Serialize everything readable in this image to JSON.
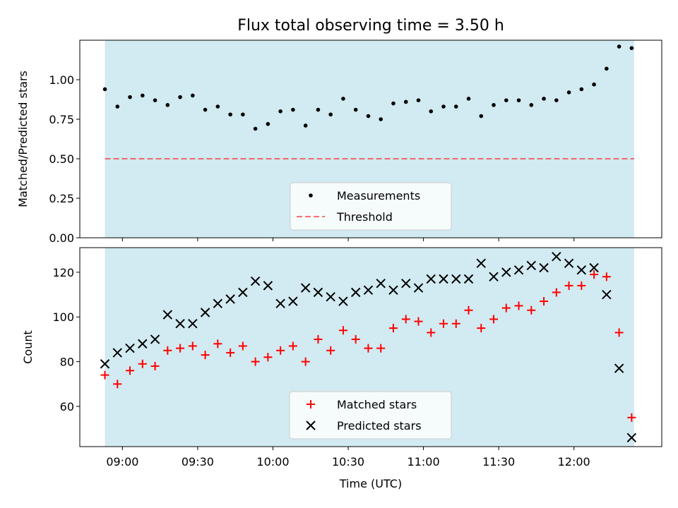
{
  "chart_data": [
    {
      "type": "scatter",
      "title": "Flux total observing time = 3.50 h",
      "ylabel": "Matched/Predicted stars",
      "xlabel": "",
      "xlim_minutes": [
        523,
        755
      ],
      "ylim": [
        0,
        1.25
      ],
      "yticks": [
        0.0,
        0.25,
        0.5,
        0.75,
        1.0
      ],
      "ytick_labels": [
        "0.00",
        "0.25",
        "0.50",
        "0.75",
        "1.00"
      ],
      "xticks_minutes": [
        540,
        570,
        600,
        630,
        660,
        690,
        720
      ],
      "shaded_span_minutes": [
        533,
        744
      ],
      "threshold": 0.5,
      "colors": {
        "span": "#add8e6",
        "measurement": "#000000",
        "threshold": "#ff0000"
      },
      "legend": [
        "Measurements",
        "Threshold"
      ],
      "x_minutes": [
        533,
        538,
        543,
        548,
        553,
        558,
        563,
        568,
        573,
        578,
        583,
        588,
        593,
        598,
        603,
        608,
        613,
        618,
        623,
        628,
        633,
        638,
        643,
        648,
        653,
        658,
        663,
        668,
        673,
        678,
        683,
        688,
        693,
        698,
        703,
        708,
        713,
        718,
        723,
        728,
        733,
        738,
        743
      ],
      "values": [
        0.94,
        0.83,
        0.89,
        0.9,
        0.87,
        0.84,
        0.89,
        0.9,
        0.81,
        0.83,
        0.78,
        0.78,
        0.69,
        0.72,
        0.8,
        0.81,
        0.71,
        0.81,
        0.78,
        0.88,
        0.81,
        0.77,
        0.75,
        0.85,
        0.86,
        0.87,
        0.8,
        0.83,
        0.83,
        0.88,
        0.77,
        0.84,
        0.87,
        0.87,
        0.84,
        0.88,
        0.87,
        0.92,
        0.94,
        0.97,
        1.07,
        1.21,
        1.2
      ]
    },
    {
      "type": "scatter",
      "title": "",
      "ylabel": "Count",
      "xlabel": "Time (UTC)",
      "xlim_minutes": [
        523,
        755
      ],
      "ylim": [
        42,
        131
      ],
      "yticks": [
        60,
        80,
        100,
        120
      ],
      "ytick_labels": [
        "60",
        "80",
        "100",
        "120"
      ],
      "xticks_minutes": [
        540,
        570,
        600,
        630,
        660,
        690,
        720
      ],
      "xtick_labels": [
        "09:00",
        "09:30",
        "10:00",
        "10:30",
        "11:00",
        "11:30",
        "12:00"
      ],
      "shaded_span_minutes": [
        533,
        744
      ],
      "colors": {
        "span": "#add8e6",
        "matched": "#ff0000",
        "predicted": "#000000"
      },
      "legend": [
        "Matched stars",
        "Predicted stars"
      ],
      "x_minutes": [
        533,
        538,
        543,
        548,
        553,
        558,
        563,
        568,
        573,
        578,
        583,
        588,
        593,
        598,
        603,
        608,
        613,
        618,
        623,
        628,
        633,
        638,
        643,
        648,
        653,
        658,
        663,
        668,
        673,
        678,
        683,
        688,
        693,
        698,
        703,
        708,
        713,
        718,
        723,
        728,
        733,
        738,
        743
      ],
      "series": [
        {
          "name": "Matched stars",
          "marker": "plus",
          "values": [
            74,
            70,
            76,
            79,
            78,
            85,
            86,
            87,
            83,
            88,
            84,
            87,
            80,
            82,
            85,
            87,
            80,
            90,
            85,
            94,
            90,
            86,
            86,
            95,
            99,
            98,
            93,
            97,
            97,
            103,
            95,
            99,
            104,
            105,
            103,
            107,
            111,
            114,
            114,
            119,
            118,
            93,
            55
          ]
        },
        {
          "name": "Predicted stars",
          "marker": "x",
          "values": [
            79,
            84,
            86,
            88,
            90,
            101,
            97,
            97,
            102,
            106,
            108,
            111,
            116,
            114,
            106,
            107,
            113,
            111,
            109,
            107,
            111,
            112,
            115,
            112,
            115,
            113,
            117,
            117,
            117,
            117,
            124,
            118,
            120,
            121,
            123,
            122,
            127,
            124,
            121,
            122,
            110,
            77,
            46
          ]
        }
      ]
    }
  ]
}
